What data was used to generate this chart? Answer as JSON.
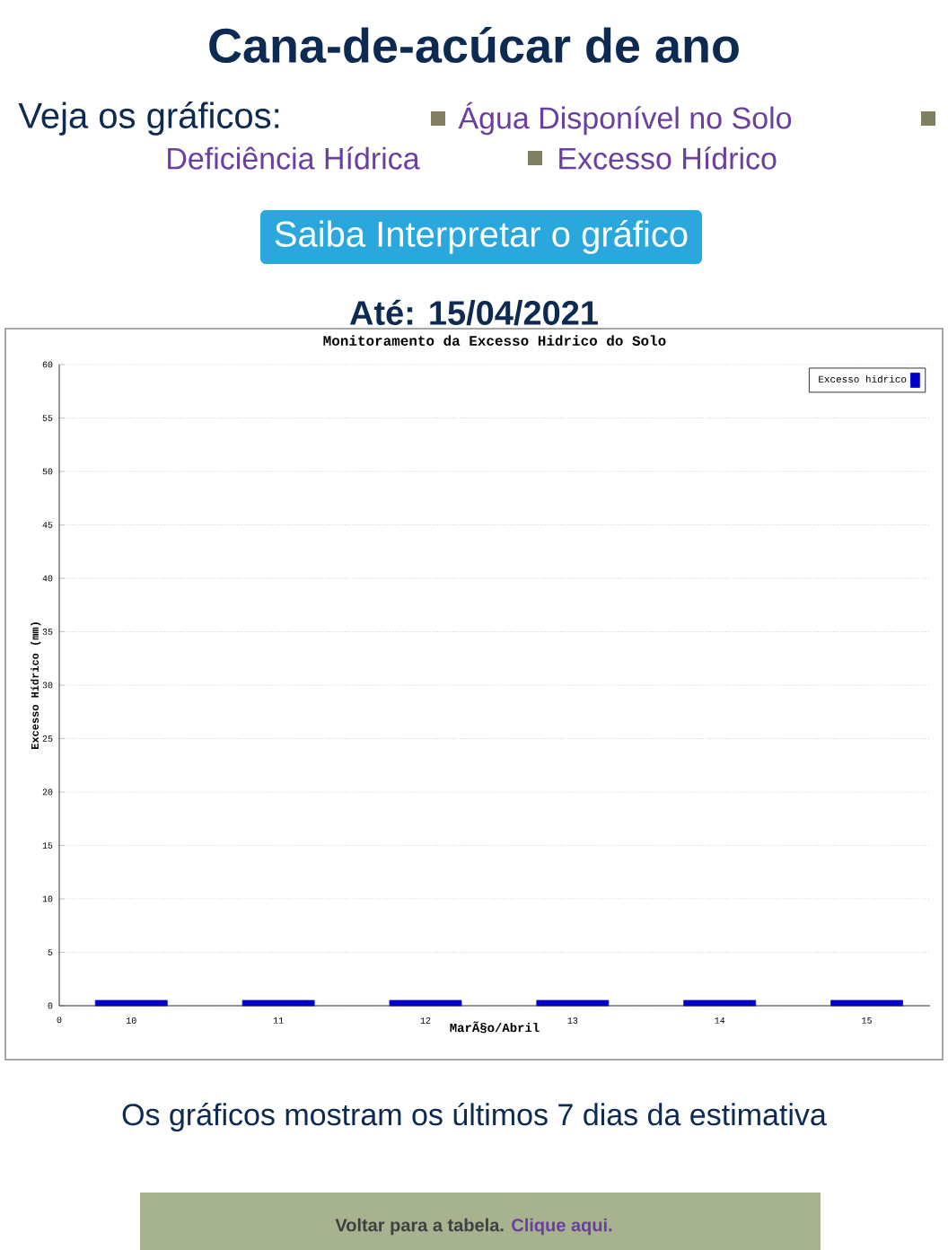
{
  "chart_data": {
    "type": "bar",
    "title": "Monitoramento da Excesso Hidrico do Solo",
    "xlabel": "MarÃ§o/Abril",
    "ylabel": "Excesso Hídrico (mm)",
    "categories": [
      "10",
      "11",
      "12",
      "13",
      "14",
      "15"
    ],
    "series": [
      {
        "name": "Excesso hidrico",
        "color": "#0000cc",
        "values": [
          0.5,
          0.5,
          0.5,
          0.5,
          0.5,
          0.5
        ]
      }
    ],
    "ylim": [
      0,
      60
    ],
    "yticks": [
      0,
      5,
      10,
      15,
      20,
      25,
      30,
      35,
      40,
      45,
      50,
      55,
      60
    ],
    "grid": "y",
    "legend": "top right",
    "annotations": [
      "Cana-de-acúcar de ano",
      "Veja os gráficos:",
      "Água Disponível no Solo",
      "Deficiência Hídrica",
      "Excesso Hídrico",
      "Saiba Interpretar o gráfico",
      "Até: 15/04/2021",
      "0",
      "Os gráficos mostram os últimos 7 dias da estimativa",
      "Voltar para a tabela.",
      "Clique aqui."
    ]
  }
}
